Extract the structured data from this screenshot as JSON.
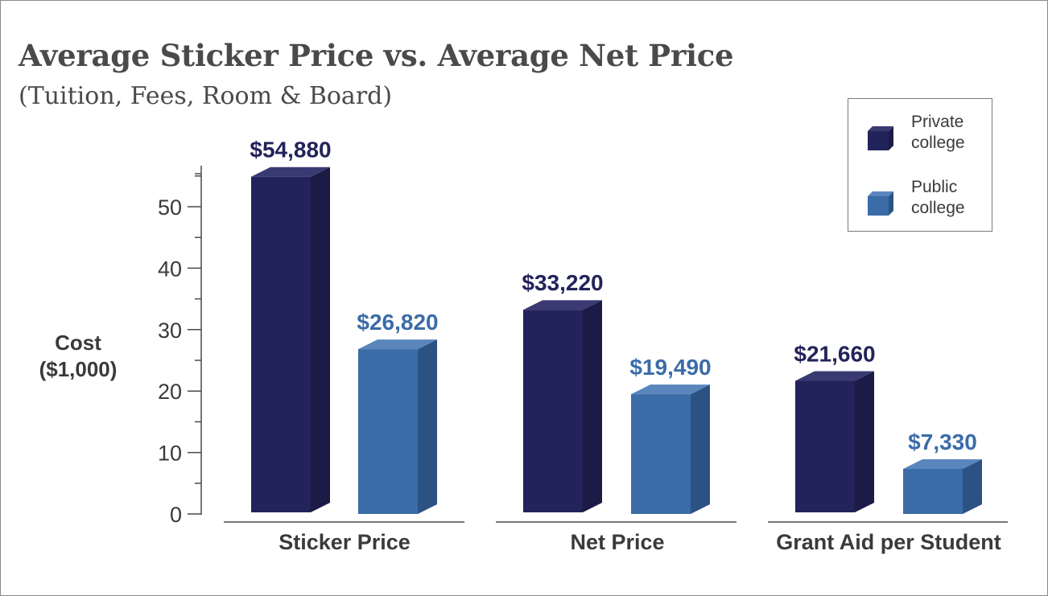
{
  "chart_data": {
    "type": "bar",
    "title": "Average Sticker Price vs. Average Net Price",
    "subtitle": "(Tuition, Fees, Room & Board)",
    "ylabel": "Cost\n($1,000)",
    "xlabel": "",
    "ylim": [
      0,
      57
    ],
    "yticks": [
      0,
      10,
      20,
      30,
      40,
      50
    ],
    "categories": [
      "Sticker Price",
      "Net Price",
      "Grant Aid per Student"
    ],
    "series": [
      {
        "name": "Private\ncollege",
        "values": [
          54.88,
          33.22,
          21.66
        ],
        "labels": [
          "$54,880",
          "$33,220",
          "$21,660"
        ],
        "color": "#23235b"
      },
      {
        "name": "Public\ncollege",
        "values": [
          26.82,
          19.49,
          7.33
        ],
        "labels": [
          "$26,820",
          "$19,490",
          "$7,330"
        ],
        "color": "#3b6ca8"
      }
    ],
    "legend_position": "top-right",
    "grid": false
  },
  "colors": {
    "private_front": "#23235b",
    "private_side": "#1b1b45",
    "private_top": "#3a3a73",
    "public_front": "#3b6ca8",
    "public_side": "#2c5284",
    "public_top": "#5a86bd",
    "private_label": "#23235b",
    "public_label": "#3b6ca8",
    "axis": "#4a4a4a",
    "text": "#3a3a3a"
  }
}
